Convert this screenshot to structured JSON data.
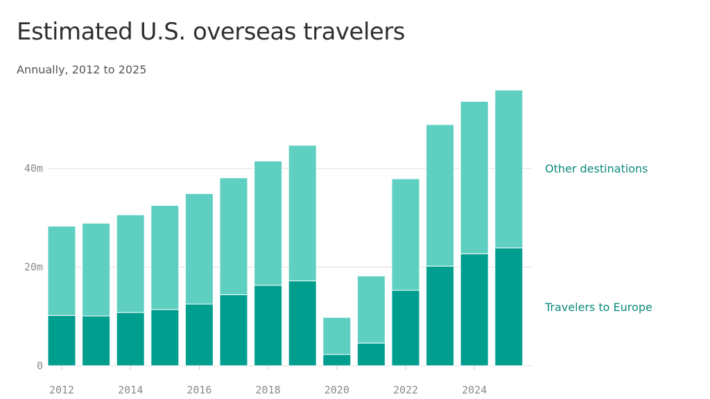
{
  "title": "Estimated U.S. overseas travelers",
  "subtitle": "Annually, 2012 to 2025",
  "colors": {
    "europe": "#009e8f",
    "other": "#5ecfc1",
    "grid": "#dddddd",
    "label": "#0b8a7a"
  },
  "chart_data": {
    "type": "bar",
    "stacked": true,
    "categories": [
      "2012",
      "2013",
      "2014",
      "2015",
      "2016",
      "2017",
      "2018",
      "2019",
      "2020",
      "2021",
      "2022",
      "2023",
      "2024",
      "2025"
    ],
    "series": [
      {
        "name": "Travelers to Europe",
        "values": [
          10.2,
          10.1,
          10.8,
          11.4,
          12.5,
          14.4,
          16.3,
          17.2,
          2.3,
          4.6,
          15.3,
          20.2,
          22.7,
          23.9
        ]
      },
      {
        "name": "Other destinations",
        "values": [
          18.1,
          18.8,
          19.8,
          21.1,
          22.4,
          23.7,
          25.2,
          27.5,
          7.5,
          13.6,
          22.6,
          28.7,
          30.9,
          32.0
        ]
      }
    ],
    "y_ticks": [
      "0",
      "20m",
      "40m"
    ],
    "y_tick_values": [
      0,
      20,
      40
    ],
    "x_tick_labels": [
      "2012",
      "2014",
      "2016",
      "2018",
      "2020",
      "2022",
      "2024"
    ],
    "ylim": [
      0,
      56
    ],
    "grid": true,
    "legend_position": "right, labels beside each series"
  }
}
